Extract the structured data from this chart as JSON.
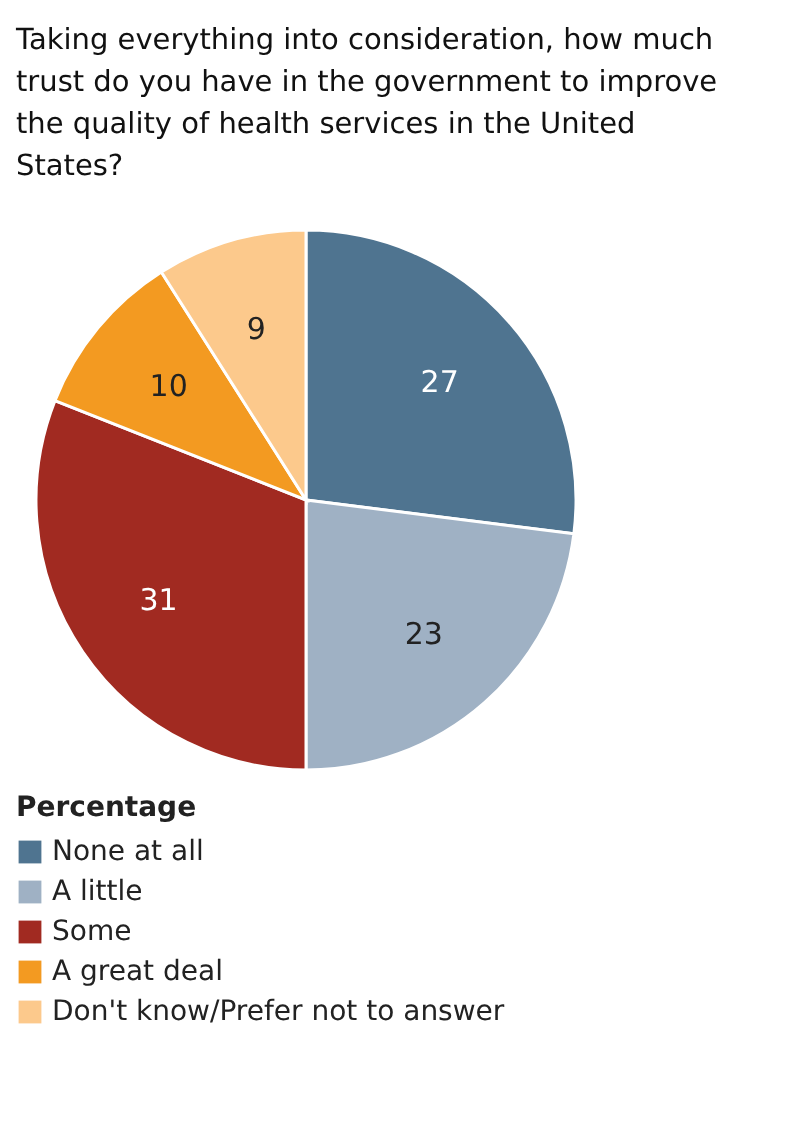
{
  "chart_data": {
    "type": "pie",
    "title": "Taking everything into consideration, how much trust do you have in the government to improve the quality of health services in the United States?",
    "legend_title": "Percentage",
    "legend": "bottom left",
    "data_labels": true,
    "categories": [
      "None at all",
      "A little",
      "Some",
      "A great deal",
      "Don't know/Prefer not to answer"
    ],
    "values": [
      27,
      23,
      31,
      10,
      9
    ],
    "colors": [
      "#4f7490",
      "#9fb1c4",
      "#a12a21",
      "#f39a21",
      "#fcc98c"
    ]
  }
}
